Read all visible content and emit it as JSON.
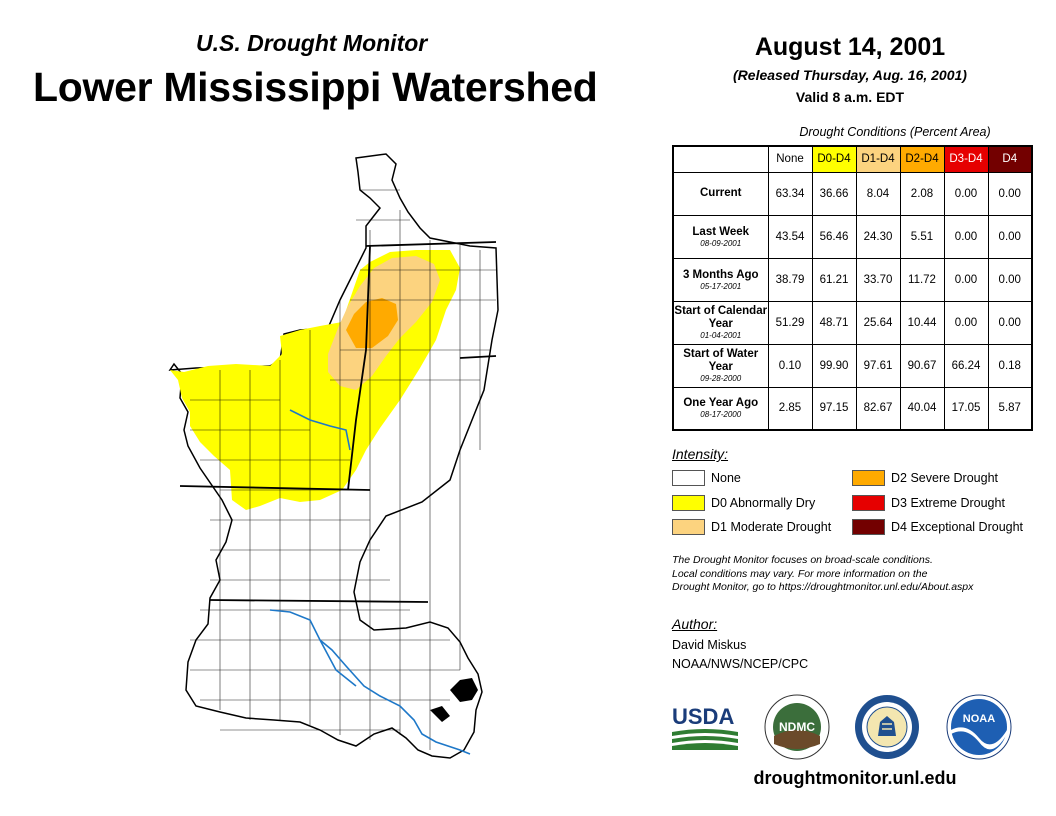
{
  "header": {
    "subtitle": "U.S. Drought Monitor",
    "title": "Lower Mississippi Watershed",
    "date": "August 14, 2001",
    "released": "(Released Thursday, Aug. 16, 2001)",
    "valid": "Valid 8 a.m. EDT"
  },
  "table": {
    "caption": "Drought Conditions (Percent Area)",
    "columns": [
      "None",
      "D0-D4",
      "D1-D4",
      "D2-D4",
      "D3-D4",
      "D4"
    ],
    "rows": [
      {
        "label": "Current",
        "date": "",
        "values": [
          "63.34",
          "36.66",
          "8.04",
          "2.08",
          "0.00",
          "0.00"
        ]
      },
      {
        "label": "Last Week",
        "date": "08-09-2001",
        "values": [
          "43.54",
          "56.46",
          "24.30",
          "5.51",
          "0.00",
          "0.00"
        ]
      },
      {
        "label": "3 Months Ago",
        "date": "05-17-2001",
        "values": [
          "38.79",
          "61.21",
          "33.70",
          "11.72",
          "0.00",
          "0.00"
        ]
      },
      {
        "label": "Start of Calendar Year",
        "date": "01-04-2001",
        "values": [
          "51.29",
          "48.71",
          "25.64",
          "10.44",
          "0.00",
          "0.00"
        ]
      },
      {
        "label": "Start of Water Year",
        "date": "09-28-2000",
        "values": [
          "0.10",
          "99.90",
          "97.61",
          "90.67",
          "66.24",
          "0.18"
        ]
      },
      {
        "label": "One Year Ago",
        "date": "08-17-2000",
        "values": [
          "2.85",
          "97.15",
          "82.67",
          "40.04",
          "17.05",
          "5.87"
        ]
      }
    ]
  },
  "legend": {
    "title": "Intensity:",
    "items": [
      {
        "label": "None",
        "color": "#ffffff"
      },
      {
        "label": "D0 Abnormally Dry",
        "color": "#ffff00"
      },
      {
        "label": "D1 Moderate Drought",
        "color": "#fcd37f"
      },
      {
        "label": "D2 Severe Drought",
        "color": "#ffaa00"
      },
      {
        "label": "D3 Extreme Drought",
        "color": "#e60000"
      },
      {
        "label": "D4 Exceptional Drought",
        "color": "#730000"
      }
    ]
  },
  "note": {
    "line1": "The Drought Monitor focuses on broad-scale conditions.",
    "line2": "Local conditions may vary. For more information on the",
    "line3": "Drought Monitor, go to https://droughtmonitor.unl.edu/About.aspx"
  },
  "author": {
    "label": "Author:",
    "name": "David Miskus",
    "org": "NOAA/NWS/NCEP/CPC"
  },
  "logos": {
    "usda": "USDA",
    "ndmc": "NDMC",
    "noaa": "NOAA"
  },
  "footer": {
    "site": "droughtmonitor.unl.edu"
  }
}
